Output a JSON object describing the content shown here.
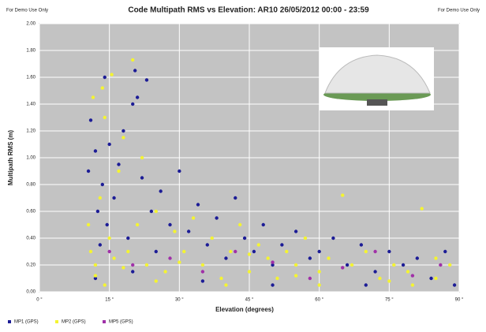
{
  "chart_data": {
    "type": "scatter",
    "title": "Code Multipath RMS vs Elevation: AR10 26/05/2012 00:00 - 23:59",
    "notes": [
      "For Demo Use Only",
      "For Demo Use Only"
    ],
    "x_label": "Elevation (degrees)",
    "y_label": "Multipath RMS (m)",
    "xlim": [
      0,
      90
    ],
    "xticks": [
      {
        "value": 0,
        "label": "0 °"
      },
      {
        "value": 15,
        "label": "15 °"
      },
      {
        "value": 30,
        "label": "30 °"
      },
      {
        "value": 45,
        "label": "45 °"
      },
      {
        "value": 60,
        "label": "60 °"
      },
      {
        "value": 75,
        "label": "75 °"
      },
      {
        "value": 90,
        "label": "90 °"
      }
    ],
    "ylim": [
      0,
      2
    ],
    "yticks": [
      {
        "value": 0,
        "label": "0.00"
      },
      {
        "value": 0.2,
        "label": "0.20"
      },
      {
        "value": 0.4,
        "label": "0.40"
      },
      {
        "value": 0.6,
        "label": "0.60"
      },
      {
        "value": 0.8,
        "label": "0.80"
      },
      {
        "value": 1,
        "label": "1.00"
      },
      {
        "value": 1.2,
        "label": "1.20"
      },
      {
        "value": 1.4,
        "label": "1.40"
      },
      {
        "value": 1.6,
        "label": "1.60"
      },
      {
        "value": 1.8,
        "label": "1.80"
      },
      {
        "value": 2,
        "label": "2.00"
      }
    ],
    "grid": true,
    "legend": "bottom-left",
    "series": [
      {
        "name": "MP1 (GPS)",
        "color": "#1c1c96",
        "x": [
          10.5,
          11,
          12,
          12.5,
          13,
          13.5,
          14,
          14.5,
          15,
          16,
          17,
          18,
          19,
          20,
          20.5,
          21,
          22,
          23,
          24,
          25,
          26,
          28,
          30,
          32,
          34,
          36,
          38,
          40,
          42,
          44,
          46,
          48,
          50,
          52,
          55,
          58,
          60,
          63,
          66,
          69,
          72,
          75,
          78,
          81,
          84,
          87,
          89,
          12,
          20,
          35,
          50,
          70
        ],
        "values": [
          0.9,
          1.28,
          1.05,
          0.6,
          0.35,
          0.8,
          1.6,
          0.5,
          1.1,
          0.7,
          0.95,
          1.2,
          0.4,
          1.4,
          1.65,
          1.45,
          0.85,
          1.58,
          0.6,
          0.3,
          0.75,
          0.5,
          0.9,
          0.45,
          0.65,
          0.35,
          0.55,
          0.25,
          0.7,
          0.4,
          0.3,
          0.5,
          0.2,
          0.35,
          0.45,
          0.25,
          0.3,
          0.4,
          0.2,
          0.35,
          0.15,
          0.3,
          0.2,
          0.25,
          0.1,
          0.3,
          0.05,
          0.1,
          0.15,
          0.08,
          0.05,
          0.05
        ]
      },
      {
        "name": "MP2 (GPS)",
        "color": "#f4f431",
        "x": [
          10.5,
          11,
          11.5,
          12,
          13,
          13.5,
          14,
          15,
          15.5,
          16,
          17,
          18,
          19,
          20,
          21,
          22,
          23,
          25,
          27,
          29,
          31,
          33,
          35,
          37,
          39,
          41,
          43,
          45,
          47,
          49,
          51,
          53,
          55,
          57,
          60,
          62,
          65,
          67,
          70,
          73,
          76,
          79,
          82,
          85,
          88,
          14,
          25,
          40,
          60,
          80,
          12,
          18,
          30,
          45,
          55,
          75,
          85
        ],
        "values": [
          0.5,
          0.3,
          1.45,
          0.2,
          0.7,
          1.52,
          1.3,
          0.4,
          1.62,
          0.25,
          0.9,
          1.15,
          0.3,
          1.73,
          0.5,
          1.0,
          0.2,
          0.6,
          0.15,
          0.45,
          0.3,
          0.55,
          0.2,
          0.4,
          0.1,
          0.3,
          0.5,
          0.15,
          0.35,
          0.25,
          0.1,
          0.3,
          0.2,
          0.4,
          0.15,
          0.25,
          0.72,
          0.2,
          0.3,
          0.1,
          0.2,
          0.15,
          0.62,
          0.1,
          0.2,
          0.05,
          0.08,
          0.05,
          0.05,
          0.05,
          0.12,
          0.18,
          0.22,
          0.28,
          0.12,
          0.08,
          0.25
        ]
      },
      {
        "name": "MP5 (GPS)",
        "color": "#a030a8",
        "x": [
          15,
          20,
          28,
          35,
          42,
          50,
          58,
          65,
          72,
          80,
          86
        ],
        "values": [
          0.3,
          0.2,
          0.25,
          0.15,
          0.3,
          0.22,
          0.1,
          0.18,
          0.3,
          0.12,
          0.2
        ]
      }
    ]
  }
}
